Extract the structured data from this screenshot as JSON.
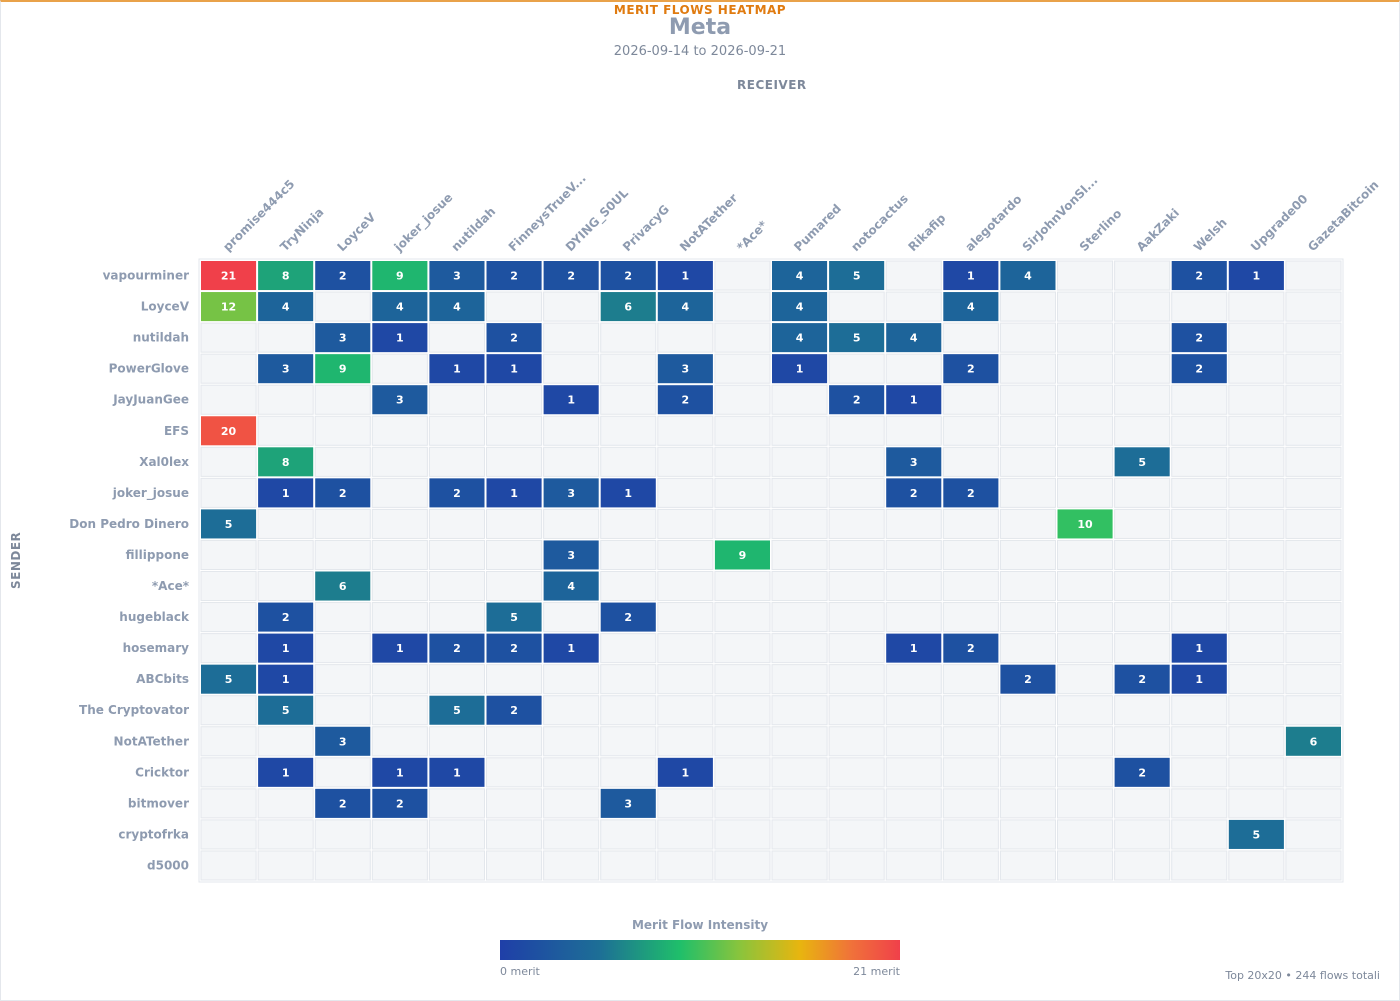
{
  "header": {
    "kicker": "MERIT FLOWS HEATMAP",
    "title": "Meta",
    "date_range": "2026-09-14 to 2026-09-21"
  },
  "axes": {
    "x_title": "RECEIVER",
    "y_title": "SENDER"
  },
  "legend": {
    "title": "Merit Flow Intensity",
    "min_label": "0 merit",
    "max_label": "21 merit"
  },
  "footer": "Top 20x20 • 244 flows totali",
  "chart_data": {
    "type": "heatmap",
    "receivers": [
      "promise444c5",
      "TryNinja",
      "LoyceV",
      "joker_josue",
      "nutildah",
      "FinneysTrueV...",
      "DYING_S0UL",
      "PrivacyG",
      "NotATether",
      "*Ace*",
      "Pumared",
      "notocactus",
      "Rikafip",
      "alegotardo",
      "SirJohnVonSl...",
      "Sterlino",
      "AakZaki",
      "Welsh",
      "Upgrade00",
      "GazetaBitcoin"
    ],
    "senders": [
      "vapourminer",
      "LoyceV",
      "nutildah",
      "PowerGlove",
      "JayJuanGee",
      "EFS",
      "Xal0lex",
      "joker_josue",
      "Don Pedro Dinero",
      "fillippone",
      "*Ace*",
      "hugeblack",
      "hosemary",
      "ABCbits",
      "The Cryptovator",
      "NotATether",
      "Cricktor",
      "bitmover",
      "cryptofrka",
      "d5000"
    ],
    "values": [
      [
        21,
        8,
        2,
        9,
        3,
        2,
        2,
        2,
        1,
        0,
        4,
        5,
        0,
        1,
        4,
        0,
        0,
        2,
        1,
        0
      ],
      [
        12,
        4,
        0,
        4,
        4,
        0,
        0,
        6,
        4,
        0,
        4,
        0,
        0,
        4,
        0,
        0,
        0,
        0,
        0,
        0
      ],
      [
        0,
        0,
        3,
        1,
        0,
        2,
        0,
        0,
        0,
        0,
        4,
        5,
        4,
        0,
        0,
        0,
        0,
        2,
        0,
        0
      ],
      [
        0,
        3,
        9,
        0,
        1,
        1,
        0,
        0,
        3,
        0,
        1,
        0,
        0,
        2,
        0,
        0,
        0,
        2,
        0,
        0
      ],
      [
        0,
        0,
        0,
        3,
        0,
        0,
        1,
        0,
        2,
        0,
        0,
        2,
        1,
        0,
        0,
        0,
        0,
        0,
        0,
        0
      ],
      [
        20,
        0,
        0,
        0,
        0,
        0,
        0,
        0,
        0,
        0,
        0,
        0,
        0,
        0,
        0,
        0,
        0,
        0,
        0,
        0
      ],
      [
        0,
        8,
        0,
        0,
        0,
        0,
        0,
        0,
        0,
        0,
        0,
        0,
        3,
        0,
        0,
        0,
        5,
        0,
        0,
        0
      ],
      [
        0,
        1,
        2,
        0,
        2,
        1,
        3,
        1,
        0,
        0,
        0,
        0,
        2,
        2,
        0,
        0,
        0,
        0,
        0,
        0
      ],
      [
        5,
        0,
        0,
        0,
        0,
        0,
        0,
        0,
        0,
        0,
        0,
        0,
        0,
        0,
        0,
        10,
        0,
        0,
        0,
        0
      ],
      [
        0,
        0,
        0,
        0,
        0,
        0,
        3,
        0,
        0,
        9,
        0,
        0,
        0,
        0,
        0,
        0,
        0,
        0,
        0,
        0
      ],
      [
        0,
        0,
        6,
        0,
        0,
        0,
        4,
        0,
        0,
        0,
        0,
        0,
        0,
        0,
        0,
        0,
        0,
        0,
        0,
        0
      ],
      [
        0,
        2,
        0,
        0,
        0,
        5,
        0,
        2,
        0,
        0,
        0,
        0,
        0,
        0,
        0,
        0,
        0,
        0,
        0,
        0
      ],
      [
        0,
        1,
        0,
        1,
        2,
        2,
        1,
        0,
        0,
        0,
        0,
        0,
        1,
        2,
        0,
        0,
        0,
        1,
        0,
        0
      ],
      [
        5,
        1,
        0,
        0,
        0,
        0,
        0,
        0,
        0,
        0,
        0,
        0,
        0,
        0,
        2,
        0,
        2,
        1,
        0,
        0
      ],
      [
        0,
        5,
        0,
        0,
        5,
        2,
        0,
        0,
        0,
        0,
        0,
        0,
        0,
        0,
        0,
        0,
        0,
        0,
        0,
        0
      ],
      [
        0,
        0,
        3,
        0,
        0,
        0,
        0,
        0,
        0,
        0,
        0,
        0,
        0,
        0,
        0,
        0,
        0,
        0,
        0,
        6
      ],
      [
        0,
        1,
        0,
        1,
        1,
        0,
        0,
        0,
        1,
        0,
        0,
        0,
        0,
        0,
        0,
        0,
        2,
        0,
        0,
        0
      ],
      [
        0,
        0,
        2,
        2,
        0,
        0,
        0,
        3,
        0,
        0,
        0,
        0,
        0,
        0,
        0,
        0,
        0,
        0,
        0,
        0
      ],
      [
        0,
        0,
        0,
        0,
        0,
        0,
        0,
        0,
        0,
        0,
        0,
        0,
        0,
        0,
        0,
        0,
        0,
        0,
        5,
        0
      ],
      [
        0,
        0,
        0,
        0,
        0,
        0,
        0,
        0,
        0,
        0,
        0,
        0,
        0,
        0,
        0,
        0,
        0,
        0,
        0,
        0
      ]
    ],
    "value_range": [
      0,
      21
    ],
    "colors": {
      "empty": "#f4f6f8",
      "empty_border": "#e3e7ec",
      "label": "#8e9bb0"
    }
  }
}
